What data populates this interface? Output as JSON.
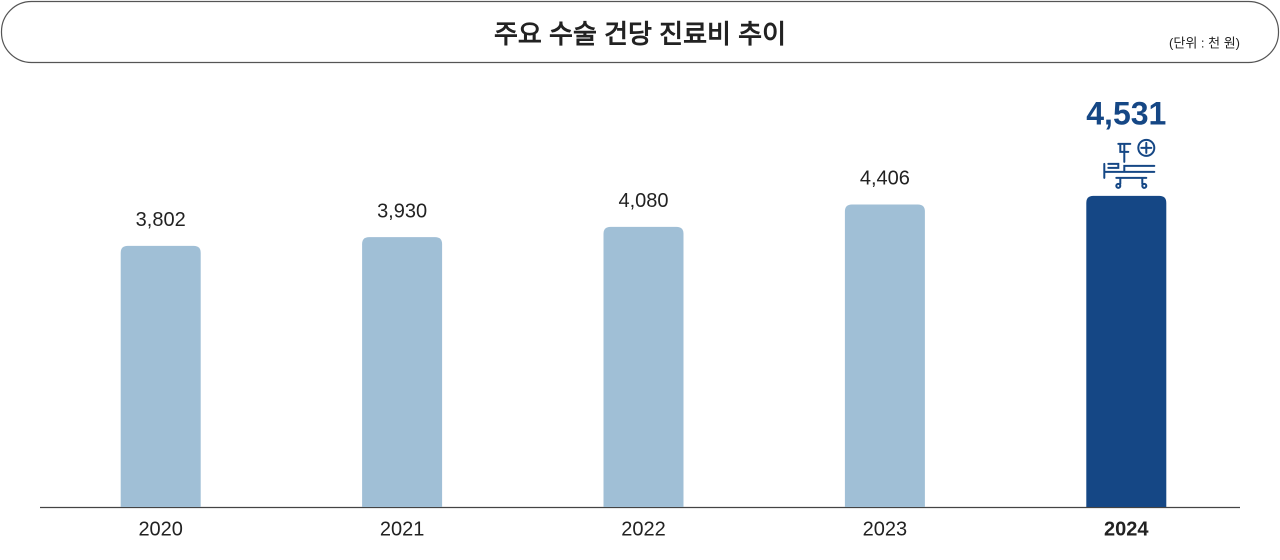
{
  "chart_data": {
    "type": "bar",
    "title": "주요 수술 건당 진료비 추이",
    "unit": "(단위 : 천 원)",
    "categories": [
      "2020",
      "2021",
      "2022",
      "2023",
      "2024"
    ],
    "values": [
      3802,
      3930,
      4080,
      4406,
      4531
    ],
    "value_labels": [
      "3,802",
      "3,930",
      "4,080",
      "4,406",
      "4,531"
    ],
    "colors": [
      "#a0bfd6",
      "#a0bfd6",
      "#a0bfd6",
      "#a0bfd6",
      "#154785"
    ],
    "highlight_category": "2024",
    "ylim": [
      0,
      6000
    ]
  }
}
